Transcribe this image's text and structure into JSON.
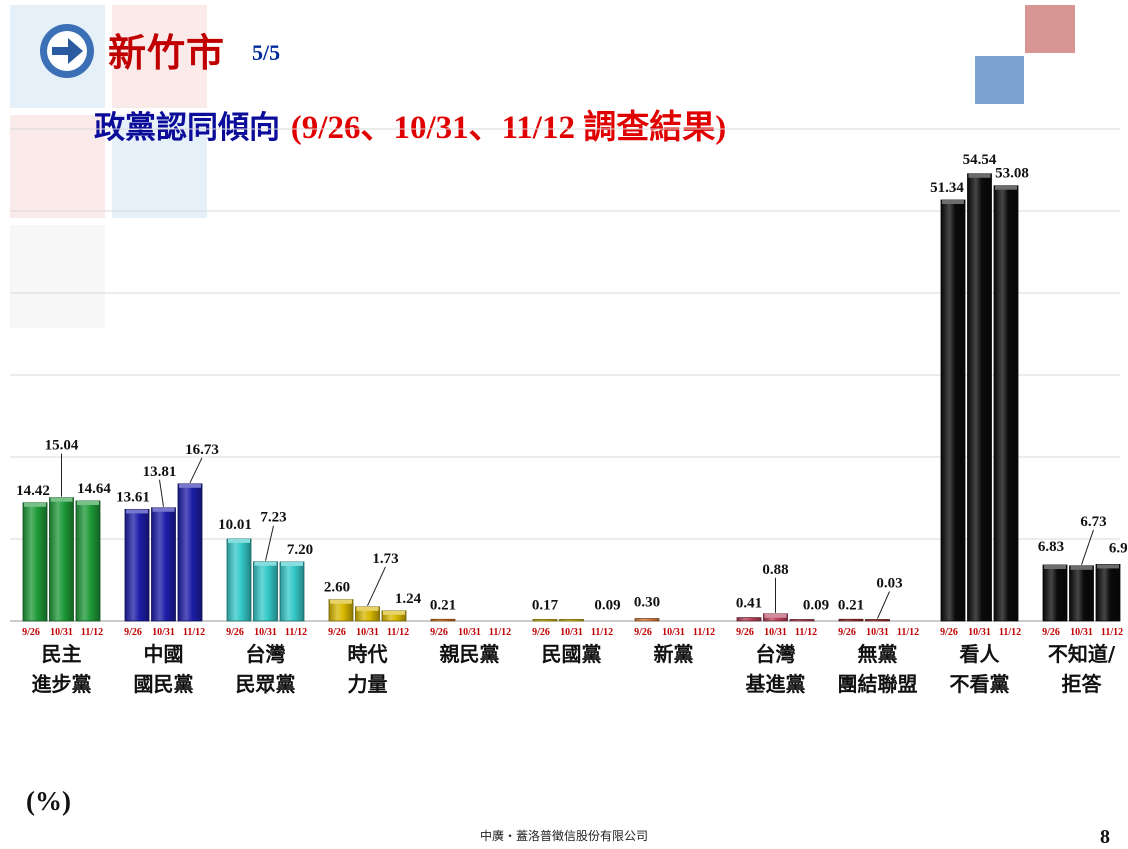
{
  "header": {
    "title": "新竹市",
    "page_indicator": "5/5",
    "subtitle_main": "政黨認同傾向",
    "subtitle_dates": "(9/26、10/31、11/12 調查結果)"
  },
  "unit_label": "(%)",
  "footer": "中廣・蓋洛普徵信股份有限公司",
  "page_number": "8",
  "icons": {
    "header_arrow": "arrow-right-circle-icon"
  },
  "colors": {
    "title_red": "#c00000",
    "subtitle_blue": "#0c0c9a",
    "header_circle": "#3b6fb6"
  },
  "chart_data": {
    "type": "bar",
    "ylim": [
      0,
      60
    ],
    "grid": true,
    "waves": [
      "9/26",
      "10/31",
      "11/12"
    ],
    "categories": [
      {
        "label_lines": [
          "民主",
          "進步黨"
        ],
        "values": [
          14.42,
          15.04,
          14.64
        ],
        "labels": [
          "14.42",
          "15.04",
          "14.64"
        ],
        "color": "#1e9a38"
      },
      {
        "label_lines": [
          "中國",
          "國民黨"
        ],
        "values": [
          13.61,
          13.81,
          16.73
        ],
        "labels": [
          "13.61",
          "13.81",
          "16.73"
        ],
        "color": "#1d1da8"
      },
      {
        "label_lines": [
          "台灣",
          "民眾黨"
        ],
        "values": [
          10.01,
          7.23,
          7.2
        ],
        "labels": [
          "10.01",
          "7.23",
          "7.20"
        ],
        "color": "#35c8c8"
      },
      {
        "label_lines": [
          "時代",
          "力量"
        ],
        "values": [
          2.6,
          1.73,
          1.24
        ],
        "labels": [
          "2.60",
          "1.73",
          "1.24"
        ],
        "color": "#d8b800"
      },
      {
        "label_lines": [
          "親民黨"
        ],
        "values": [
          0.21,
          0,
          0
        ],
        "labels": [
          "0.21",
          "",
          ""
        ],
        "color": "#e07a20"
      },
      {
        "label_lines": [
          "民國黨"
        ],
        "values": [
          0.17,
          0.09,
          0
        ],
        "labels": [
          "0.17",
          "0.09",
          ""
        ],
        "color": "#d8c000"
      },
      {
        "label_lines": [
          "新黨"
        ],
        "values": [
          0.3,
          0,
          0
        ],
        "labels": [
          "0.30",
          "",
          ""
        ],
        "color": "#e08040"
      },
      {
        "label_lines": [
          "台灣",
          "基進黨"
        ],
        "values": [
          0.41,
          0.88,
          0.09
        ],
        "labels": [
          "0.41",
          "0.88",
          "0.09"
        ],
        "color": "#b8405a"
      },
      {
        "label_lines": [
          "無黨",
          "團結聯盟"
        ],
        "values": [
          0.21,
          0.03,
          0
        ],
        "labels": [
          "0.21",
          "0.03",
          ""
        ],
        "color": "#a03030"
      },
      {
        "label_lines": [
          "看人",
          "不看黨"
        ],
        "values": [
          51.34,
          54.54,
          53.08
        ],
        "labels": [
          "51.34",
          "54.54",
          "53.08"
        ],
        "color": "#0a0a0a"
      },
      {
        "label_lines": [
          "不知道/",
          "拒答"
        ],
        "values": [
          6.83,
          6.73,
          6.9
        ],
        "labels": [
          "6.83",
          "6.73",
          "6.90"
        ],
        "color": "#0a0a0a"
      }
    ]
  }
}
